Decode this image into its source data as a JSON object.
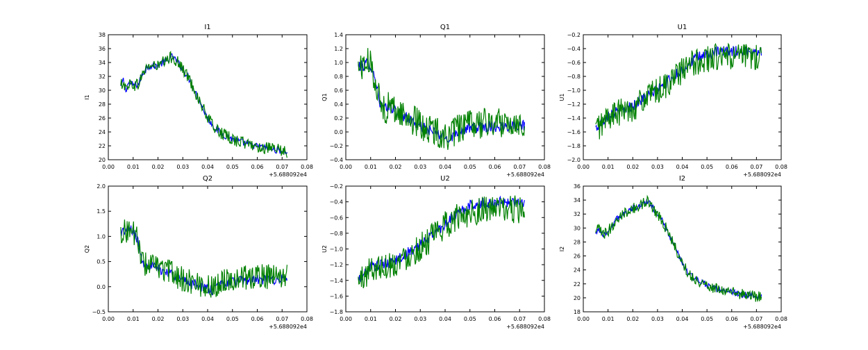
{
  "colors": {
    "series_a": "#0000ff",
    "series_b": "#008000",
    "axis": "#000000",
    "background": "#ffffff"
  },
  "chart_data": [
    {
      "type": "line",
      "title": "I1",
      "ylabel": "I1",
      "xlabel": "",
      "offset_label": "+5.688092e4",
      "xlim": [
        0.0,
        0.08
      ],
      "ylim": [
        20,
        38
      ],
      "xticks": [
        "0.00",
        "0.01",
        "0.02",
        "0.03",
        "0.04",
        "0.05",
        "0.06",
        "0.07",
        "0.08"
      ],
      "yticks": [
        "20",
        "22",
        "24",
        "26",
        "28",
        "30",
        "32",
        "34",
        "36",
        "38"
      ],
      "x": [
        0.005,
        0.006,
        0.007,
        0.008,
        0.01,
        0.012,
        0.014,
        0.016,
        0.018,
        0.02,
        0.022,
        0.024,
        0.025,
        0.026,
        0.028,
        0.03,
        0.032,
        0.034,
        0.036,
        0.038,
        0.04,
        0.042,
        0.044,
        0.046,
        0.048,
        0.05,
        0.052,
        0.055,
        0.058,
        0.06,
        0.063,
        0.066,
        0.07,
        0.072
      ],
      "series": [
        {
          "name": "series-blue",
          "values": [
            30.5,
            31.5,
            30.0,
            31.0,
            30.8,
            30.8,
            32.5,
            33.5,
            33.5,
            33.5,
            34.0,
            34.2,
            34.8,
            34.8,
            34.0,
            33.0,
            32.0,
            30.6,
            29.0,
            27.5,
            26.0,
            25.0,
            24.2,
            23.7,
            23.3,
            23.0,
            22.7,
            22.4,
            22.1,
            21.9,
            21.7,
            21.5,
            21.3,
            21.1
          ],
          "noise": 0.5
        },
        {
          "name": "series-green",
          "values": [
            30.5,
            31.5,
            30.0,
            31.0,
            30.8,
            30.8,
            32.5,
            33.5,
            33.5,
            33.5,
            34.0,
            34.2,
            34.8,
            34.8,
            34.0,
            33.0,
            32.0,
            30.6,
            29.0,
            27.5,
            26.0,
            25.0,
            24.2,
            23.7,
            23.3,
            23.0,
            22.7,
            22.4,
            22.1,
            21.9,
            21.7,
            21.5,
            21.3,
            21.1
          ],
          "noise": 0.9
        }
      ]
    },
    {
      "type": "line",
      "title": "Q1",
      "ylabel": "Q1",
      "xlabel": "",
      "offset_label": "+5.688092e4",
      "xlim": [
        0.0,
        0.08
      ],
      "ylim": [
        -0.4,
        1.4
      ],
      "xticks": [
        "0.00",
        "0.01",
        "0.02",
        "0.03",
        "0.04",
        "0.05",
        "0.06",
        "0.07",
        "0.08"
      ],
      "yticks": [
        "−0.4",
        "−0.2",
        "0.0",
        "0.2",
        "0.4",
        "0.6",
        "0.8",
        "1.0",
        "1.2",
        "1.4"
      ],
      "x": [
        0.005,
        0.007,
        0.009,
        0.01,
        0.012,
        0.014,
        0.016,
        0.018,
        0.02,
        0.025,
        0.03,
        0.035,
        0.04,
        0.042,
        0.045,
        0.05,
        0.055,
        0.06,
        0.065,
        0.07,
        0.072
      ],
      "series": [
        {
          "name": "series-blue",
          "values": [
            0.95,
            0.95,
            1.0,
            0.95,
            0.75,
            0.38,
            0.33,
            0.38,
            0.3,
            0.2,
            0.08,
            0.0,
            -0.08,
            -0.1,
            0.02,
            0.05,
            0.07,
            0.08,
            0.09,
            0.1,
            0.1
          ],
          "noise": 0.08
        },
        {
          "name": "series-green",
          "values": [
            0.95,
            0.95,
            1.0,
            0.95,
            0.75,
            0.38,
            0.33,
            0.38,
            0.3,
            0.22,
            0.1,
            0.02,
            -0.05,
            -0.08,
            0.05,
            0.1,
            0.12,
            0.14,
            0.14,
            0.15,
            0.15
          ],
          "noise": 0.22
        }
      ]
    },
    {
      "type": "line",
      "title": "U1",
      "ylabel": "U1",
      "xlabel": "",
      "offset_label": "+5.688092e4",
      "xlim": [
        0.0,
        0.08
      ],
      "ylim": [
        -2.0,
        -0.2
      ],
      "xticks": [
        "0.00",
        "0.01",
        "0.02",
        "0.03",
        "0.04",
        "0.05",
        "0.06",
        "0.07",
        "0.08"
      ],
      "yticks": [
        "−2.0",
        "−1.8",
        "−1.6",
        "−1.4",
        "−1.2",
        "−1.0",
        "−0.8",
        "−0.6",
        "−0.4",
        "−0.2"
      ],
      "x": [
        0.005,
        0.008,
        0.01,
        0.015,
        0.02,
        0.025,
        0.03,
        0.035,
        0.04,
        0.045,
        0.05,
        0.055,
        0.06,
        0.065,
        0.07,
        0.072
      ],
      "series": [
        {
          "name": "series-blue",
          "values": [
            -1.55,
            -1.45,
            -1.35,
            -1.3,
            -1.22,
            -1.1,
            -1.0,
            -0.85,
            -0.7,
            -0.55,
            -0.48,
            -0.45,
            -0.44,
            -0.44,
            -0.43,
            -0.43
          ],
          "noise": 0.08
        },
        {
          "name": "series-green",
          "values": [
            -1.55,
            -1.48,
            -1.38,
            -1.32,
            -1.25,
            -1.12,
            -1.02,
            -0.88,
            -0.72,
            -0.6,
            -0.55,
            -0.52,
            -0.52,
            -0.52,
            -0.52,
            -0.52
          ],
          "noise": 0.2
        }
      ]
    },
    {
      "type": "line",
      "title": "Q2",
      "ylabel": "Q2",
      "xlabel": "",
      "offset_label": "+5.688092e4",
      "xlim": [
        0.0,
        0.08
      ],
      "ylim": [
        -0.5,
        2.0
      ],
      "xticks": [
        "0.00",
        "0.01",
        "0.02",
        "0.03",
        "0.04",
        "0.05",
        "0.06",
        "0.07",
        "0.08"
      ],
      "yticks": [
        "−0.5",
        "0.0",
        "0.5",
        "1.0",
        "1.5",
        "2.0"
      ],
      "x": [
        0.005,
        0.007,
        0.009,
        0.01,
        0.012,
        0.014,
        0.016,
        0.02,
        0.025,
        0.03,
        0.035,
        0.04,
        0.042,
        0.045,
        0.05,
        0.055,
        0.06,
        0.065,
        0.07,
        0.072
      ],
      "series": [
        {
          "name": "series-blue",
          "values": [
            1.1,
            1.1,
            1.15,
            1.1,
            0.9,
            0.45,
            0.45,
            0.35,
            0.28,
            0.12,
            0.05,
            -0.05,
            -0.08,
            0.05,
            0.1,
            0.12,
            0.13,
            0.14,
            0.15,
            0.15
          ],
          "noise": 0.1
        },
        {
          "name": "series-green",
          "values": [
            1.1,
            1.1,
            1.15,
            1.1,
            0.9,
            0.45,
            0.45,
            0.38,
            0.3,
            0.14,
            0.08,
            0.0,
            -0.03,
            0.1,
            0.16,
            0.18,
            0.2,
            0.2,
            0.22,
            0.22
          ],
          "noise": 0.25
        }
      ]
    },
    {
      "type": "line",
      "title": "U2",
      "ylabel": "U2",
      "xlabel": "",
      "offset_label": "+5.688092e4",
      "xlim": [
        0.0,
        0.08
      ],
      "ylim": [
        -1.8,
        -0.2
      ],
      "xticks": [
        "0.00",
        "0.01",
        "0.02",
        "0.03",
        "0.04",
        "0.05",
        "0.06",
        "0.07",
        "0.08"
      ],
      "yticks": [
        "−1.8",
        "−1.6",
        "−1.4",
        "−1.2",
        "−1.0",
        "−0.8",
        "−0.6",
        "−0.4",
        "−0.2"
      ],
      "x": [
        0.005,
        0.008,
        0.01,
        0.015,
        0.02,
        0.025,
        0.03,
        0.035,
        0.04,
        0.045,
        0.05,
        0.055,
        0.06,
        0.065,
        0.07,
        0.072
      ],
      "series": [
        {
          "name": "series-blue",
          "values": [
            -1.4,
            -1.3,
            -1.22,
            -1.2,
            -1.15,
            -1.05,
            -0.95,
            -0.82,
            -0.68,
            -0.55,
            -0.45,
            -0.42,
            -0.41,
            -0.4,
            -0.4,
            -0.4
          ],
          "noise": 0.07
        },
        {
          "name": "series-green",
          "values": [
            -1.42,
            -1.33,
            -1.25,
            -1.22,
            -1.18,
            -1.08,
            -0.98,
            -0.85,
            -0.7,
            -0.6,
            -0.53,
            -0.5,
            -0.5,
            -0.5,
            -0.5,
            -0.5
          ],
          "noise": 0.18
        }
      ]
    },
    {
      "type": "line",
      "title": "I2",
      "ylabel": "I2",
      "xlabel": "",
      "offset_label": "+5.688092e4",
      "xlim": [
        0.0,
        0.08
      ],
      "ylim": [
        18,
        36
      ],
      "xticks": [
        "0.00",
        "0.01",
        "0.02",
        "0.03",
        "0.04",
        "0.05",
        "0.06",
        "0.07",
        "0.08"
      ],
      "yticks": [
        "18",
        "20",
        "22",
        "24",
        "26",
        "28",
        "30",
        "32",
        "34",
        "36"
      ],
      "x": [
        0.005,
        0.006,
        0.008,
        0.01,
        0.012,
        0.014,
        0.016,
        0.018,
        0.02,
        0.022,
        0.024,
        0.026,
        0.028,
        0.03,
        0.032,
        0.034,
        0.036,
        0.038,
        0.04,
        0.042,
        0.044,
        0.046,
        0.048,
        0.05,
        0.053,
        0.056,
        0.06,
        0.064,
        0.068,
        0.072
      ],
      "series": [
        {
          "name": "series-blue",
          "values": [
            29.0,
            30.0,
            29.0,
            29.5,
            30.5,
            31.5,
            32.0,
            32.5,
            32.8,
            33.0,
            33.5,
            33.8,
            33.0,
            32.0,
            31.0,
            29.5,
            28.0,
            26.5,
            25.0,
            23.8,
            23.0,
            22.5,
            22.1,
            21.8,
            21.4,
            21.1,
            20.8,
            20.5,
            20.3,
            20.1
          ],
          "noise": 0.45
        },
        {
          "name": "series-green",
          "values": [
            29.0,
            30.0,
            29.0,
            29.5,
            30.5,
            31.5,
            32.0,
            32.5,
            32.8,
            33.0,
            33.5,
            33.8,
            33.0,
            32.0,
            31.0,
            29.5,
            28.0,
            26.5,
            25.0,
            23.8,
            23.0,
            22.5,
            22.1,
            21.8,
            21.4,
            21.1,
            20.8,
            20.5,
            20.3,
            20.1
          ],
          "noise": 0.8
        }
      ]
    }
  ]
}
